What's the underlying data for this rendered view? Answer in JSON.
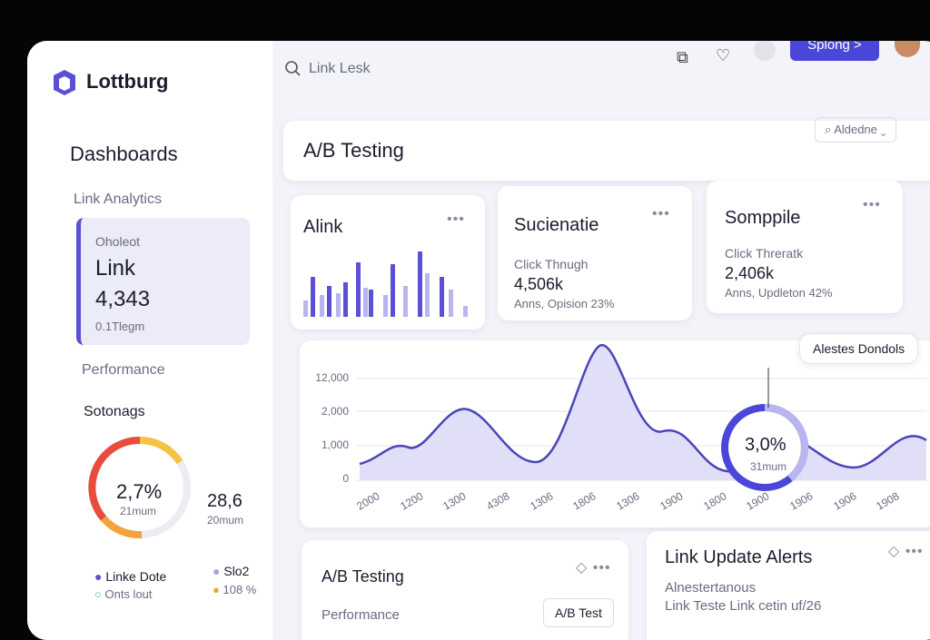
{
  "brand": "Lottburg",
  "topbar": {
    "search": "Link Lesk",
    "button": "Splong >"
  },
  "sidebar": {
    "title": "Dashboards",
    "section": "Link Analytics",
    "card": {
      "label": "Oholeot",
      "title": "Link",
      "value": "4,343",
      "sub": "0.1Tlegm"
    },
    "performance": "Performance",
    "settings": "Sotonags",
    "donut": {
      "value": "2,7%",
      "sub": "21mum"
    },
    "side_stat": {
      "value": "28,6",
      "sub": "20mum"
    },
    "legend": [
      "Linke Dote",
      "Onts lout",
      "Slo2",
      "108 %"
    ]
  },
  "page": {
    "title": "A/B Testing",
    "dropdown": "Aldedne"
  },
  "cards": [
    {
      "title": "Alink"
    },
    {
      "title": "Sucienatie",
      "label": "Click Thnugh",
      "value": "4,506k",
      "sub": "Anns, Opision 23%"
    },
    {
      "title": "Somppile",
      "label": "Click Threratk",
      "value": "2,406k",
      "sub": "Anns, Updleton 42%"
    }
  ],
  "chart": {
    "y_labels": [
      "12,000",
      "2,000",
      "1,000",
      "0"
    ],
    "x_labels": [
      "2000",
      "1200",
      "1300",
      "4308",
      "1306",
      "1806",
      "1306",
      "1900",
      "1800",
      "1900",
      "1906",
      "1906",
      "1908"
    ],
    "callout": "Alestes Dondols",
    "ring_value": "3,0%",
    "ring_sub": "31mum"
  },
  "bottom": [
    {
      "title": "A/B Testing",
      "label": "Performance",
      "button": "A/B Test"
    },
    {
      "title": "Link Update Alerts",
      "line1": "Alnestertanous",
      "line2": "Link Teste Link cetin uf/26"
    }
  ]
}
